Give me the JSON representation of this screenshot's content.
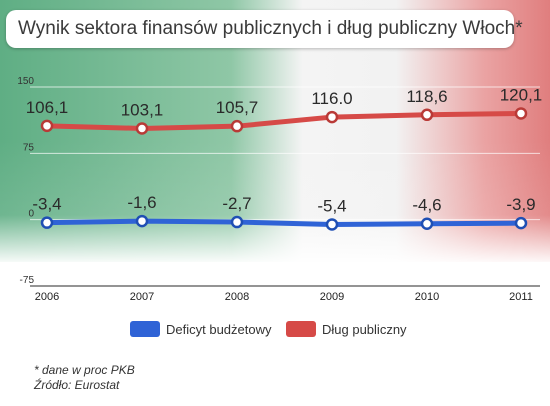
{
  "title": "Wynik sektora finansów publicznych i dług publiczny Włoch*",
  "footnote": "* dane w proc PKB",
  "source": "Źródło: Eurostat",
  "colors": {
    "deficit": "#2f63d6",
    "debt": "#d64a47",
    "flag_green": "#5fae84",
    "flag_red": "#e07e7e"
  },
  "chart_data": {
    "type": "line",
    "x": [
      "2006",
      "2007",
      "2008",
      "2009",
      "2010",
      "2011"
    ],
    "ylim": [
      -75,
      150
    ],
    "yticks": [
      "150",
      "75",
      "0",
      "-75"
    ],
    "ytick_values": [
      150,
      75,
      0,
      -75
    ],
    "series": [
      {
        "name": "Deficyt budżetowy",
        "values": [
          -3.4,
          -1.6,
          -2.7,
          -5.4,
          -4.6,
          -3.9
        ],
        "labels": [
          "-3,4",
          "-1,6",
          "-2,7",
          "-5,4",
          "-4,6",
          "-3,9"
        ]
      },
      {
        "name": "Dług publiczny",
        "values": [
          106.1,
          103.1,
          105.7,
          116.0,
          118.6,
          120.1
        ],
        "labels": [
          "106,1",
          "103,1",
          "105,7",
          "116.0",
          "118,6",
          "120,1"
        ]
      }
    ],
    "legend_position": "bottom"
  }
}
